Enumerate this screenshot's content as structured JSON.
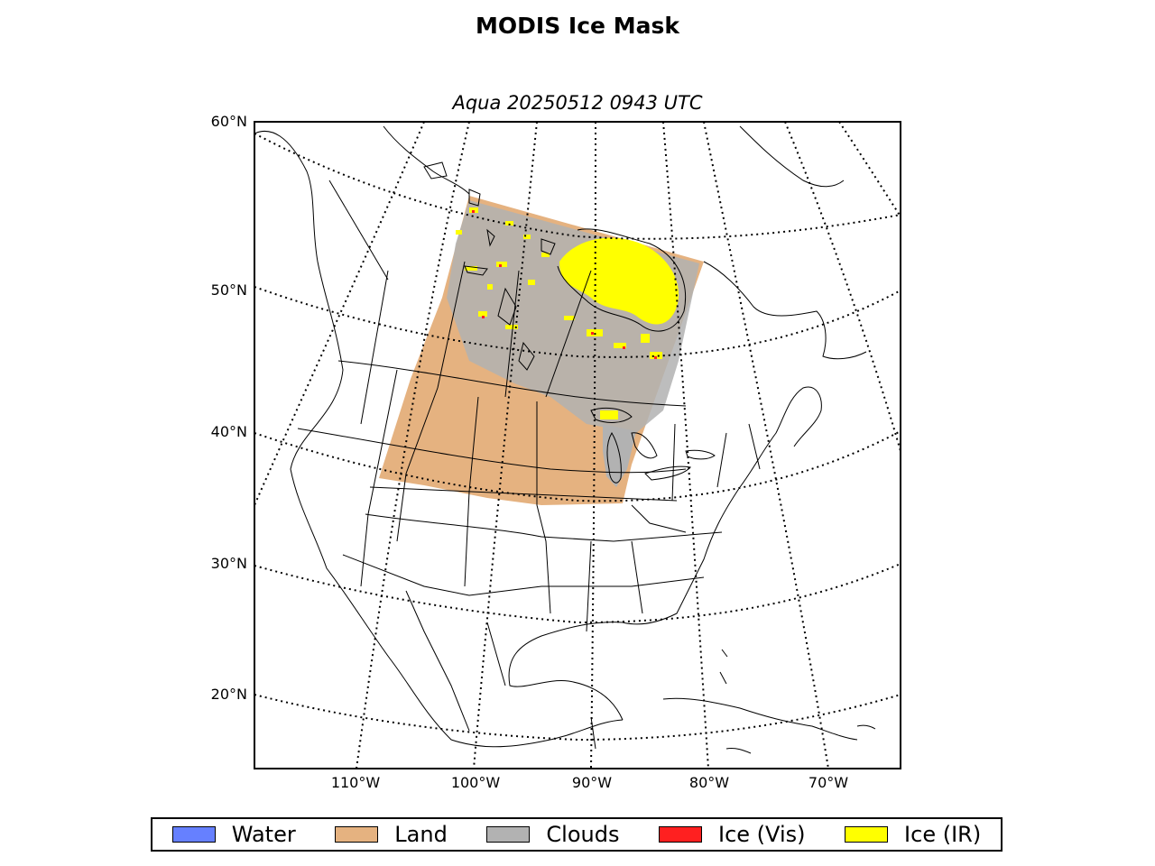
{
  "title": "MODIS Ice Mask",
  "subtitle": "Aqua 20250512 0943 UTC",
  "lat_labels": [
    "60°N",
    "50°N",
    "40°N",
    "30°N",
    "20°N"
  ],
  "lon_labels": [
    "110°W",
    "100°W",
    "90°W",
    "80°W",
    "70°W"
  ],
  "colors": {
    "water": "#6680ff",
    "land": "#e5b280",
    "clouds": "#b2b2b2",
    "ice_vis": "#ff2020",
    "ice_ir": "#ffff00",
    "frame": "#000000"
  },
  "legend": [
    {
      "label": "Water",
      "color": "#6680ff"
    },
    {
      "label": "Land",
      "color": "#e5b280"
    },
    {
      "label": "Clouds",
      "color": "#b2b2b2"
    },
    {
      "label": "Ice (Vis)",
      "color": "#ff2020"
    },
    {
      "label": "Ice (IR)",
      "color": "#ffff00"
    }
  ]
}
